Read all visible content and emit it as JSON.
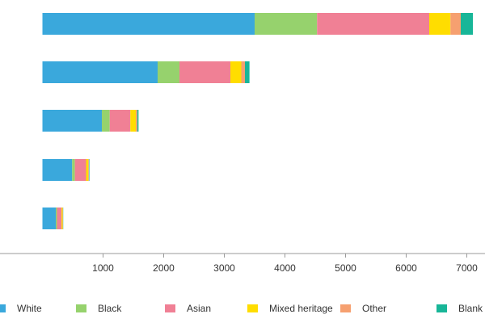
{
  "chart_data": {
    "type": "bar",
    "orientation": "horizontal",
    "stacked": true,
    "title": "",
    "xlabel": "",
    "ylabel": "",
    "xlim": [
      -700,
      7300
    ],
    "xticks": [
      1000,
      2000,
      3000,
      4000,
      5000,
      6000,
      7000
    ],
    "tick_labels": [
      "1000",
      "2000",
      "3000",
      "4000",
      "5000",
      "6000",
      "7000"
    ],
    "grid": false,
    "legend_position": "bottom",
    "series": [
      {
        "name": "White",
        "color": "#3AA8DC",
        "values": [
          3500,
          1900,
          980,
          490,
          220
        ]
      },
      {
        "name": "Black",
        "color": "#96D26D",
        "values": [
          1030,
          360,
          130,
          45,
          20
        ]
      },
      {
        "name": "Asian",
        "color": "#F08095",
        "values": [
          1850,
          840,
          340,
          185,
          75
        ]
      },
      {
        "name": "Mixed heritage",
        "color": "#FFDD00",
        "values": [
          350,
          180,
          90,
          35,
          18
        ]
      },
      {
        "name": "Other",
        "color": "#F6A070",
        "values": [
          170,
          60,
          25,
          12,
          6
        ]
      },
      {
        "name": "Blank",
        "color": "#18B698",
        "values": [
          200,
          75,
          20,
          8,
          4
        ]
      }
    ]
  }
}
